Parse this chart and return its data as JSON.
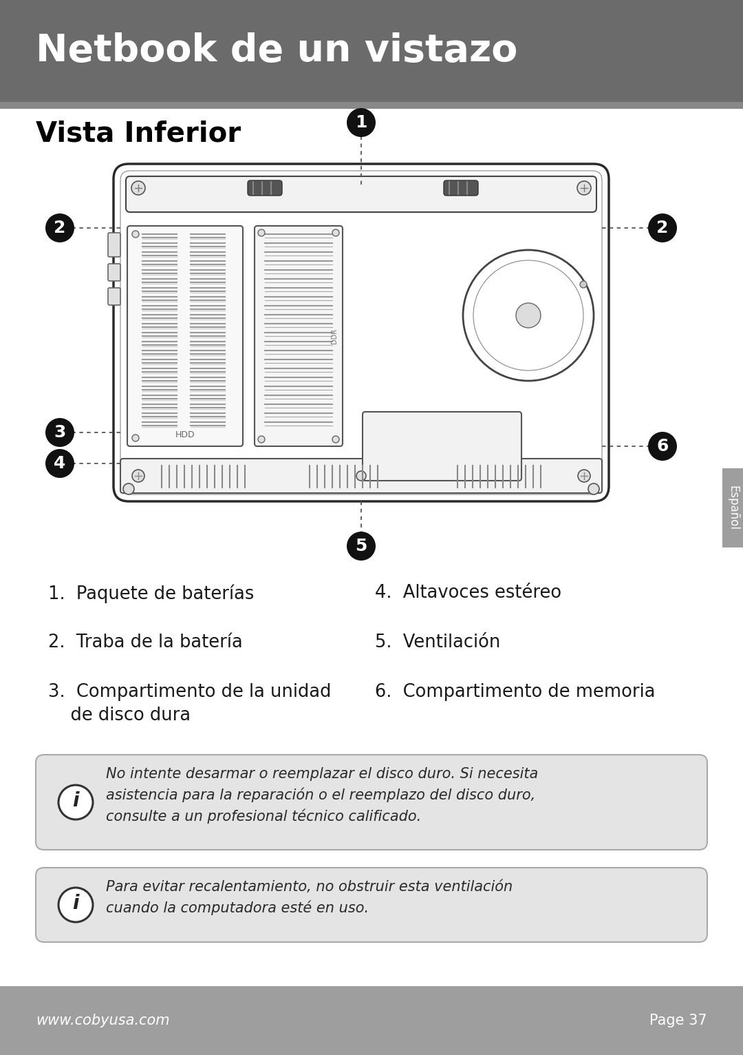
{
  "header_bg": "#6b6b6b",
  "header_text": "Netbook de un vistazo",
  "header_text_color": "#ffffff",
  "footer_bg": "#9e9e9e",
  "footer_text_left": "www.cobyusa.com",
  "footer_text_right": "Page 37",
  "footer_text_color": "#ffffff",
  "section_title": "Vista Inferior",
  "section_title_color": "#000000",
  "bg_color": "#ffffff",
  "tab_bg": "#9e9e9e",
  "tab_text": "Español",
  "tab_text_color": "#ffffff",
  "note1_text": "No intente desarmar o reemplazar el disco duro. Si necesita\nasistencia para la reparación o el reemplazo del disco duro,\nconsulte a un profesional técnico calificado.",
  "note2_text": "Para evitar recalentamiento, no obstruir esta ventilación\ncuando la computadora esté en uso.",
  "note_bg": "#e4e4e4",
  "note_border": "#aaaaaa"
}
